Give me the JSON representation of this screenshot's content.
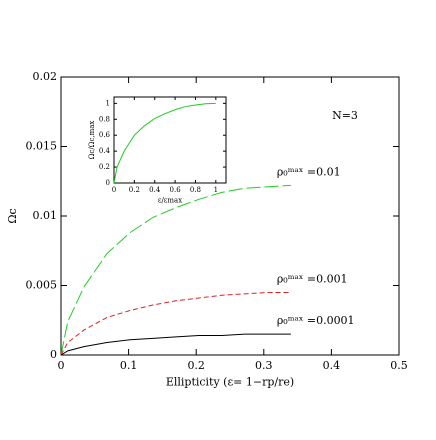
{
  "chart_data": [
    {
      "type": "line",
      "xlabel": "Ellipticity (ε= 1−rp/re)",
      "ylabel": "Ωc",
      "annotation": "N=3",
      "x": [
        0,
        0.01,
        0.034,
        0.068,
        0.102,
        0.136,
        0.17,
        0.204,
        0.238,
        0.272,
        0.306,
        0.34
      ],
      "series": [
        {
          "name": "ρ₀ᵐᵃˣ =0.01",
          "color": "#22cc22",
          "line_style": "long-dashed",
          "values": [
            0,
            0.0024,
            0.0049,
            0.0073,
            0.0088,
            0.0099,
            0.0106,
            0.0112,
            0.0117,
            0.012,
            0.0121,
            0.0122
          ]
        },
        {
          "name": "ρ₀ᵐᵃˣ =0.001",
          "color": "#dd2222",
          "line_style": "dashed",
          "values": [
            0,
            0.0009,
            0.0018,
            0.0027,
            0.0032,
            0.0036,
            0.0039,
            0.0041,
            0.0043,
            0.0044,
            0.0045,
            0.0045
          ]
        },
        {
          "name": "ρ₀ᵐᵃˣ =0.0001",
          "color": "#000000",
          "line_style": "solid",
          "values": [
            0,
            0.0003,
            0.0006,
            0.0009,
            0.0011,
            0.0012,
            0.0013,
            0.0014,
            0.0014,
            0.0015,
            0.0015,
            0.0015
          ]
        }
      ],
      "xlim": [
        0,
        0.5
      ],
      "xticks": [
        0,
        0.1,
        0.2,
        0.3,
        0.4,
        0.5
      ],
      "ylim": [
        0,
        0.02
      ],
      "yticks": [
        0,
        0.005,
        0.01,
        0.015,
        0.02
      ]
    },
    {
      "type": "line",
      "xlabel": "ε/εmax",
      "ylabel": "Ωc/Ωc,max",
      "x": [
        0,
        0.03,
        0.1,
        0.2,
        0.3,
        0.4,
        0.5,
        0.6,
        0.7,
        0.8,
        0.9,
        1
      ],
      "series": [
        {
          "color": "#22cc22",
          "line_style": "solid",
          "values": [
            0,
            0.2,
            0.4,
            0.6,
            0.72,
            0.81,
            0.87,
            0.92,
            0.96,
            0.98,
            0.995,
            1
          ]
        }
      ],
      "xlim": [
        0,
        1.1
      ],
      "xticks": [
        0,
        0.2,
        0.4,
        0.6,
        0.8,
        1
      ],
      "ylim": [
        0,
        1.08
      ],
      "yticks": [
        0,
        0.2,
        0.4,
        0.6,
        0.8,
        1
      ]
    }
  ]
}
